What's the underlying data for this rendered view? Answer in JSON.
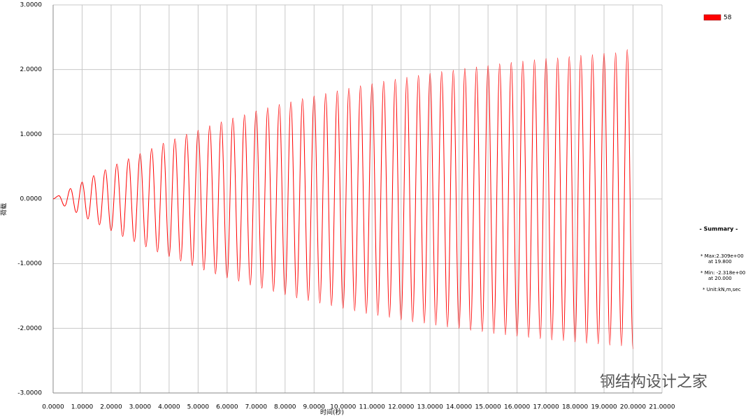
{
  "chart_data": {
    "type": "line",
    "x_label": "时间(秒)",
    "y_label": "荷载",
    "x": [
      0,
      0.2,
      0.4,
      0.6,
      0.8,
      1,
      1.2,
      1.4,
      1.6,
      1.8,
      2,
      2.2,
      2.4,
      2.6,
      2.8,
      3,
      3.2,
      3.4,
      3.6,
      3.8,
      4,
      4.2,
      4.4,
      4.6,
      4.8,
      5,
      5.2,
      5.4,
      5.6,
      5.8,
      6,
      6.2,
      6.4,
      6.6,
      6.8,
      7,
      7.2,
      7.4,
      7.6,
      7.8,
      8,
      8.2,
      8.4,
      8.6,
      8.8,
      9,
      9.2,
      9.4,
      9.6,
      9.8,
      10,
      10.2,
      10.4,
      10.6,
      10.8,
      11,
      11.2,
      11.4,
      11.6,
      11.8,
      12,
      12.2,
      12.4,
      12.6,
      12.8,
      13,
      13.2,
      13.4,
      13.6,
      13.8,
      14,
      14.2,
      14.4,
      14.6,
      14.8,
      15,
      15.2,
      15.4,
      15.6,
      15.8,
      16,
      16.2,
      16.4,
      16.6,
      16.8,
      17,
      17.2,
      17.4,
      17.6,
      17.8,
      18,
      18.2,
      18.4,
      18.6,
      18.8,
      19,
      19.2,
      19.4,
      19.6,
      19.8,
      20
    ],
    "series": [
      {
        "name": "58",
        "color": "#ff0000",
        "values": [
          0,
          0.05,
          -0.11,
          0.16,
          -0.21,
          0.26,
          -0.31,
          0.36,
          -0.4,
          0.45,
          -0.49,
          0.54,
          -0.58,
          0.62,
          -0.66,
          0.7,
          -0.74,
          0.78,
          -0.82,
          0.86,
          -0.89,
          0.93,
          -0.96,
          1.0,
          -1.03,
          1.06,
          -1.1,
          1.13,
          -1.16,
          1.19,
          -1.22,
          1.25,
          -1.27,
          1.3,
          -1.33,
          1.36,
          -1.38,
          1.41,
          -1.43,
          1.46,
          -1.48,
          1.5,
          -1.53,
          1.55,
          -1.57,
          1.59,
          -1.61,
          1.63,
          -1.65,
          1.67,
          -1.69,
          1.71,
          -1.73,
          1.75,
          -1.77,
          1.78,
          -1.8,
          1.82,
          -1.83,
          1.85,
          -1.87,
          1.88,
          -1.9,
          1.91,
          -1.92,
          1.94,
          -1.95,
          1.97,
          -1.98,
          1.99,
          -2.0,
          2.02,
          -2.03,
          2.04,
          -2.05,
          2.06,
          -2.08,
          2.09,
          -2.1,
          2.11,
          -2.12,
          2.13,
          -2.14,
          2.15,
          -2.16,
          2.17,
          -2.18,
          2.18,
          -2.19,
          2.2,
          -2.21,
          2.22,
          -2.23,
          2.23,
          -2.24,
          2.25,
          -2.26,
          2.26,
          -2.27,
          2.309,
          -2.318
        ]
      }
    ],
    "xlim": [
      0,
      21
    ],
    "ylim": [
      -3,
      3
    ],
    "xticks": [
      {
        "value": 0,
        "label": "0.0000"
      },
      {
        "value": 1,
        "label": "1.0000"
      },
      {
        "value": 2,
        "label": "2.0000"
      },
      {
        "value": 3,
        "label": "3.0000"
      },
      {
        "value": 4,
        "label": "4.0000"
      },
      {
        "value": 5,
        "label": "5.0000"
      },
      {
        "value": 6,
        "label": "6.0000"
      },
      {
        "value": 7,
        "label": "7.0000"
      },
      {
        "value": 8,
        "label": "8.0000"
      },
      {
        "value": 9,
        "label": "9.0000"
      },
      {
        "value": 10,
        "label": "10.0000"
      },
      {
        "value": 11,
        "label": "11.0000"
      },
      {
        "value": 12,
        "label": "12.0000"
      },
      {
        "value": 13,
        "label": "13.0000"
      },
      {
        "value": 14,
        "label": "14.0000"
      },
      {
        "value": 15,
        "label": "15.0000"
      },
      {
        "value": 16,
        "label": "16.0000"
      },
      {
        "value": 17,
        "label": "17.0000"
      },
      {
        "value": 18,
        "label": "18.0000"
      },
      {
        "value": 19,
        "label": "19.0000"
      },
      {
        "value": 20,
        "label": "20.0000"
      },
      {
        "value": 21,
        "label": "21.0000"
      }
    ],
    "yticks": [
      {
        "value": 3,
        "label": "3.0000"
      },
      {
        "value": 2,
        "label": "2.0000"
      },
      {
        "value": 1,
        "label": "1.0000"
      },
      {
        "value": 0,
        "label": "0.0000"
      },
      {
        "value": -1,
        "label": "-1.0000"
      },
      {
        "value": -2,
        "label": "-2.0000"
      },
      {
        "value": -3,
        "label": "-3.0000"
      }
    ],
    "grid": true,
    "legend_position": "upper right",
    "summary": {
      "title": "- Summary -",
      "lines": [
        "* Max:2.309e+00",
        "at 19.800",
        "* Min: -2.318e+00",
        "at 20.000",
        "* Unit:kN,m,sec"
      ]
    },
    "watermark": "钢结构设计之家"
  }
}
